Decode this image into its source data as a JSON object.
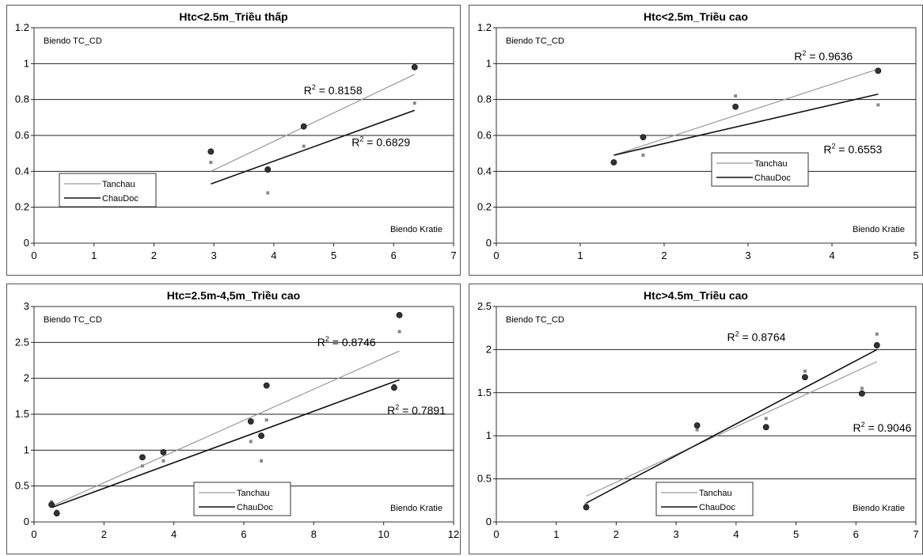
{
  "chart_data": [
    {
      "type": "scatter",
      "title": "Htc<2.5m_Triều thấp",
      "xlim": [
        0,
        7
      ],
      "ylim": [
        0,
        1.2
      ],
      "xticks": [
        0,
        1,
        2,
        3,
        4,
        5,
        6,
        7
      ],
      "yticks": [
        0,
        0.2,
        0.4,
        0.6,
        0.8,
        1,
        1.2
      ],
      "ytick_labels": [
        "0",
        "0.2",
        "0.4",
        "0.6",
        "0.8",
        "1",
        "1.2"
      ],
      "grid": "horizontal",
      "ylabel_text": "Biendo TC_CD",
      "xlabel_text": "Biendo Kratie",
      "legend": {
        "position": "left",
        "entries": [
          "Tanchau",
          "ChauDoc"
        ]
      },
      "series": [
        {
          "name": "Tanchau",
          "color": "#999999",
          "x": [
            2.95,
            3.9,
            4.5,
            6.35
          ],
          "y": [
            0.45,
            0.28,
            0.54,
            0.78
          ],
          "trend": {
            "x": [
              2.95,
              6.35
            ],
            "y": [
              0.4,
              0.94
            ]
          },
          "r2": {
            "label": "R2 = 0.8158",
            "value": "0.8158",
            "at": [
              4.5,
              0.83
            ]
          }
        },
        {
          "name": "ChauDoc",
          "color": "#111111",
          "x": [
            2.95,
            3.9,
            4.5,
            6.35
          ],
          "y": [
            0.51,
            0.41,
            0.65,
            0.98
          ],
          "trend": {
            "x": [
              2.95,
              6.35
            ],
            "y": [
              0.33,
              0.74
            ]
          },
          "r2": {
            "label": "R2 = 0.6829",
            "value": "0.6829",
            "at": [
              5.3,
              0.54
            ]
          }
        }
      ]
    },
    {
      "type": "scatter",
      "title": "Htc<2.5m_Triều cao",
      "xlim": [
        0,
        5
      ],
      "ylim": [
        0,
        1.2
      ],
      "xticks": [
        0,
        1,
        2,
        3,
        4,
        5
      ],
      "yticks": [
        0,
        0.2,
        0.4,
        0.6,
        0.8,
        1,
        1.2
      ],
      "ytick_labels": [
        "0",
        "0.2",
        "0.4",
        "0.6",
        "0.8",
        "1",
        "1.2"
      ],
      "grid": "horizontal",
      "ylabel_text": "Biendo TC_CD",
      "xlabel_text": "Biendo Kratie",
      "legend": {
        "position": "right-center",
        "entries": [
          "Tanchau",
          "ChauDoc"
        ]
      },
      "series": [
        {
          "name": "Tanchau",
          "color": "#999999",
          "x": [
            1.4,
            1.75,
            2.85,
            4.55
          ],
          "y": [
            0.45,
            0.49,
            0.82,
            0.77
          ],
          "trend": {
            "x": [
              1.4,
              4.55
            ],
            "y": [
              0.49,
              0.97
            ]
          },
          "r2": {
            "label": "R2 = 0.9636",
            "value": "0.9636",
            "at": [
              3.55,
              1.02
            ]
          }
        },
        {
          "name": "ChauDoc",
          "color": "#111111",
          "x": [
            1.4,
            1.75,
            2.85,
            4.55
          ],
          "y": [
            0.45,
            0.59,
            0.76,
            0.96
          ],
          "trend": {
            "x": [
              1.4,
              4.55
            ],
            "y": [
              0.49,
              0.83
            ]
          },
          "r2": {
            "label": "R2 = 0.6553",
            "value": "0.6553",
            "at": [
              3.9,
              0.5
            ]
          }
        }
      ]
    },
    {
      "type": "scatter",
      "title": "Htc=2.5m-4,5m_Triều cao",
      "xlim": [
        0,
        12
      ],
      "ylim": [
        0,
        3
      ],
      "xticks": [
        0,
        2,
        4,
        6,
        8,
        10,
        12
      ],
      "yticks": [
        0,
        0.5,
        1,
        1.5,
        2,
        2.5,
        3
      ],
      "ytick_labels": [
        "0",
        "0.5",
        "1",
        "1.5",
        "2",
        "2.5",
        "3"
      ],
      "grid": "horizontal",
      "ylabel_text": "Biendo TC_CD",
      "xlabel_text": "Biendo Kratie",
      "legend": {
        "position": "bottom-center",
        "entries": [
          "Tanchau",
          "ChauDoc"
        ]
      },
      "series": [
        {
          "name": "Tanchau",
          "color": "#999999",
          "x": [
            0.5,
            0.65,
            3.1,
            3.7,
            6.2,
            6.5,
            6.65,
            10.3,
            10.45
          ],
          "y": [
            0.28,
            0.15,
            0.78,
            0.85,
            1.12,
            0.85,
            1.42,
            1.9,
            2.65
          ],
          "trend": {
            "x": [
              0.5,
              10.45
            ],
            "y": [
              0.22,
              2.38
            ]
          },
          "r2": {
            "label": "R2 = 0.8746",
            "value": "0.8746",
            "at": [
              8.1,
              2.45
            ]
          }
        },
        {
          "name": "ChauDoc",
          "color": "#111111",
          "x": [
            0.5,
            0.65,
            3.1,
            3.7,
            6.2,
            6.5,
            6.65,
            10.3,
            10.45
          ],
          "y": [
            0.24,
            0.12,
            0.9,
            0.97,
            1.4,
            1.2,
            1.9,
            1.87,
            2.88
          ],
          "trend": {
            "x": [
              0.5,
              10.45
            ],
            "y": [
              0.2,
              1.98
            ]
          },
          "r2": {
            "label": "R2 = 0.7891",
            "value": "0.7891",
            "at": [
              10.1,
              1.5
            ]
          }
        }
      ]
    },
    {
      "type": "scatter",
      "title": "Htc>4.5m_Triều cao",
      "xlim": [
        0,
        7
      ],
      "ylim": [
        0,
        2.5
      ],
      "xticks": [
        0,
        1,
        2,
        3,
        4,
        5,
        6,
        7
      ],
      "yticks": [
        0,
        0.5,
        1,
        1.5,
        2,
        2.5
      ],
      "ytick_labels": [
        "0",
        "0.5",
        "1",
        "1.5",
        "2",
        "2.5"
      ],
      "grid": "horizontal",
      "ylabel_text": "Biendo TC_CD",
      "xlabel_text": "Biendo Kratie",
      "legend": {
        "position": "bottom-center",
        "entries": [
          "Tanchau",
          "ChauDoc"
        ]
      },
      "series": [
        {
          "name": "Tanchau",
          "color": "#999999",
          "x": [
            1.5,
            3.35,
            4.5,
            5.15,
            6.1,
            6.35
          ],
          "y": [
            0.2,
            1.07,
            1.2,
            1.75,
            1.55,
            2.18
          ],
          "trend": {
            "x": [
              1.5,
              6.35
            ],
            "y": [
              0.3,
              1.86
            ]
          },
          "r2": {
            "label": "R2 = 0.8764",
            "value": "0.8764",
            "at": [
              3.85,
              2.1
            ]
          }
        },
        {
          "name": "ChauDoc",
          "color": "#111111",
          "x": [
            1.5,
            3.35,
            4.5,
            5.15,
            6.1,
            6.35
          ],
          "y": [
            0.17,
            1.12,
            1.1,
            1.68,
            1.49,
            2.05
          ],
          "trend": {
            "x": [
              1.5,
              6.35
            ],
            "y": [
              0.22,
              2.0
            ]
          },
          "r2": {
            "label": "R2 = 0.9046",
            "value": "0.9046",
            "at": [
              5.95,
              1.05
            ]
          }
        }
      ]
    }
  ]
}
